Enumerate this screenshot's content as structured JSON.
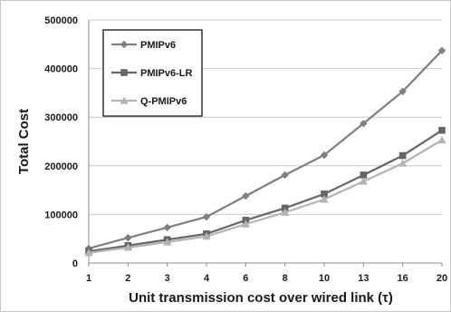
{
  "chart_data": {
    "type": "line",
    "title": "",
    "xlabel": "Unit transmission  cost over wired link (τ)",
    "ylabel": "Total Cost",
    "categories": [
      "1",
      "2",
      "3",
      "4",
      "6",
      "8",
      "10",
      "13",
      "16",
      "20"
    ],
    "ylim": [
      0,
      500000
    ],
    "yticks": [
      "0",
      "100000",
      "200000",
      "300000",
      "400000",
      "500000"
    ],
    "grid": "horizontal",
    "legend": "top-left",
    "series": [
      {
        "name": "PMIPv6",
        "color": "#7f7f7f",
        "marker": "diamond",
        "values": [
          30000,
          52000,
          73000,
          95000,
          138000,
          181000,
          222000,
          287000,
          353000,
          437000
        ]
      },
      {
        "name": "PMIPv6-LR",
        "color": "#666666",
        "marker": "square",
        "values": [
          24000,
          36000,
          48000,
          60000,
          88000,
          113000,
          142000,
          181000,
          221000,
          273000
        ]
      },
      {
        "name": "Q-PMIPv6",
        "color": "#b3b3b3",
        "marker": "triangle",
        "values": [
          21000,
          32000,
          43000,
          55000,
          80000,
          104000,
          131000,
          168000,
          205000,
          253000
        ]
      }
    ]
  }
}
